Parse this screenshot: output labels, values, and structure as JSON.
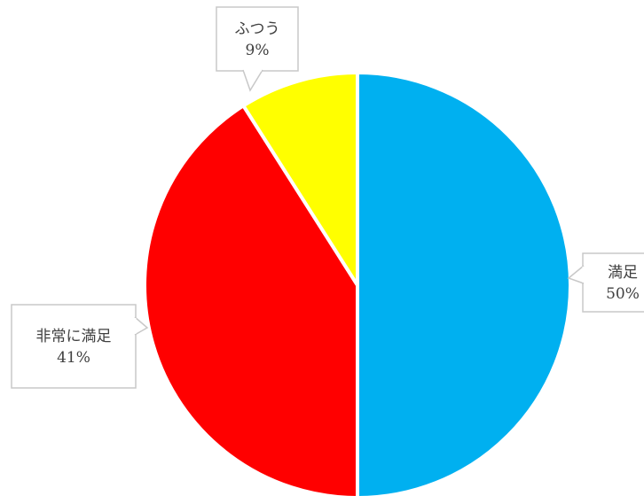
{
  "chart_data": {
    "type": "pie",
    "title": "",
    "slices": [
      {
        "label": "満足",
        "value": 50,
        "value_label": "50%",
        "color": "#00b0f0"
      },
      {
        "label": "非常に満足",
        "value": 41,
        "value_label": "41%",
        "color": "#ff0000"
      },
      {
        "label": "ふつう",
        "value": 9,
        "value_label": "9%",
        "color": "#ffff00"
      }
    ],
    "start": "12 o'clock",
    "direction": "clockwise",
    "legend": "none",
    "data_labels": "callouts"
  }
}
